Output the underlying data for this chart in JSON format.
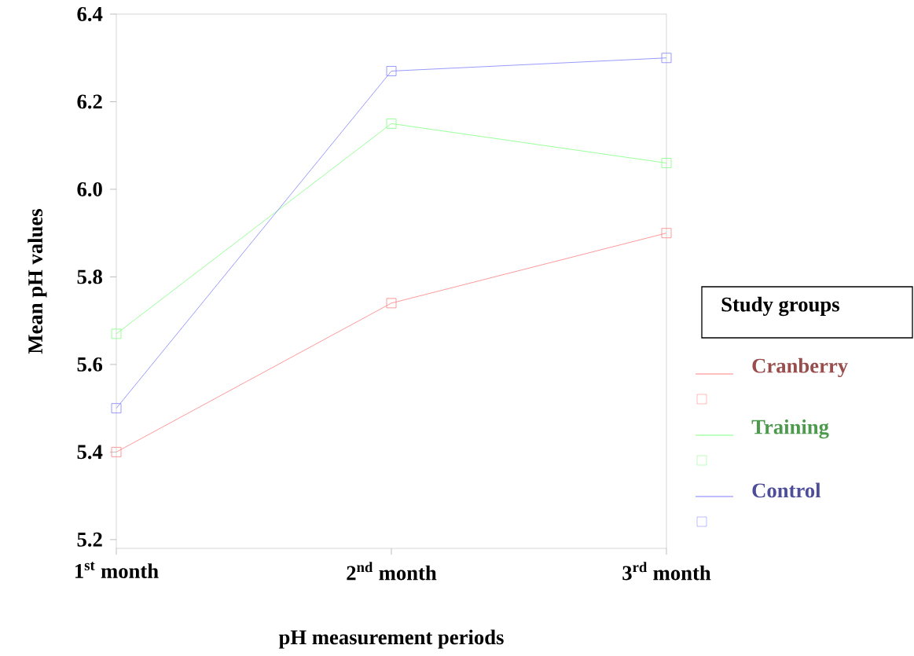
{
  "chart_data": {
    "type": "line",
    "xlabel": "pH measurement periods",
    "ylabel": "Mean pH values",
    "legend_title": "Study groups",
    "categories": [
      "1$^{st}$ month",
      "2$^{nd}$ month",
      "3$^{rd}$ month"
    ],
    "series": [
      {
        "name": "Cranberry",
        "color": "#ff8080",
        "values": [
          5.4,
          5.74,
          5.9
        ]
      },
      {
        "name": "Training",
        "color": "#80ff80",
        "values": [
          5.67,
          6.15,
          6.06
        ]
      },
      {
        "name": "Control",
        "color": "#8080ff",
        "values": [
          5.5,
          6.27,
          6.3
        ]
      }
    ],
    "ylim": [
      5.18,
      6.4
    ],
    "yticks": [
      5.2,
      5.4,
      5.6,
      5.8,
      {
        "value": 6.0,
        "label": "6.0"
      },
      6.2,
      6.4
    ],
    "grid": false,
    "legend": "right",
    "marker": "square",
    "line_style": "solid"
  }
}
